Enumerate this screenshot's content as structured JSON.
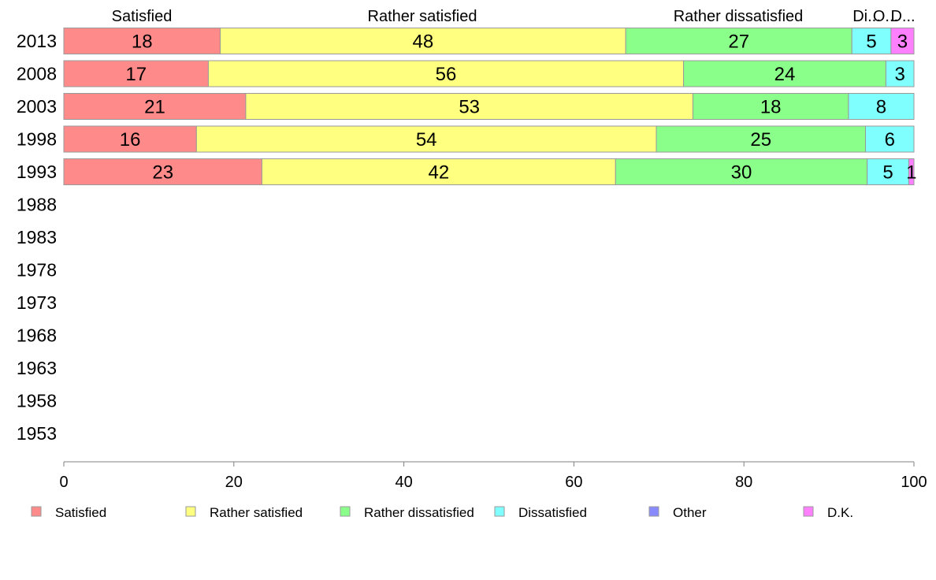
{
  "chart_data": {
    "type": "bar",
    "orientation": "horizontal",
    "stacked": true,
    "categories": [
      "2013",
      "2008",
      "2003",
      "1998",
      "1993",
      "1988",
      "1983",
      "1978",
      "1973",
      "1968",
      "1963",
      "1958",
      "1953"
    ],
    "series": [
      {
        "name": "Satisfied",
        "color": "#ff8a8a",
        "values": [
          18.4,
          17,
          21.4,
          15.6,
          23.3,
          null,
          null,
          null,
          null,
          null,
          null,
          null,
          null
        ]
      },
      {
        "name": "Rather satisfied",
        "color": "#ffff80",
        "values": [
          47.7,
          55.9,
          52.6,
          54.1,
          41.6,
          null,
          null,
          null,
          null,
          null,
          null,
          null,
          null
        ]
      },
      {
        "name": "Rather dissatisfied",
        "color": "#8aff8a",
        "values": [
          26.6,
          23.8,
          18.3,
          24.6,
          29.6,
          null,
          null,
          null,
          null,
          null,
          null,
          null,
          null
        ]
      },
      {
        "name": "Dissatisfied",
        "color": "#80ffff",
        "values": [
          4.6,
          3.3,
          7.7,
          5.7,
          4.9,
          null,
          null,
          null,
          null,
          null,
          null,
          null,
          null
        ]
      },
      {
        "name": "Other",
        "color": "#8a8aff",
        "values": [
          0,
          0,
          0,
          0,
          0,
          null,
          null,
          null,
          null,
          null,
          null,
          null,
          null
        ]
      },
      {
        "name": "D.K.",
        "color": "#ff80ff",
        "values": [
          2.7,
          0,
          0,
          0,
          0.6,
          null,
          null,
          null,
          null,
          null,
          null,
          null,
          null
        ]
      }
    ],
    "data_labels": [
      [
        "18",
        "48",
        "27",
        "5",
        "",
        "3"
      ],
      [
        "17",
        "56",
        "24",
        "3",
        "",
        ""
      ],
      [
        "21",
        "53",
        "18",
        "8",
        "",
        ""
      ],
      [
        "16",
        "54",
        "25",
        "6",
        "",
        ""
      ],
      [
        "23",
        "42",
        "30",
        "5",
        "",
        "1"
      ]
    ],
    "top_labels": [
      "Satisfied",
      "Rather satisfied",
      "Rather dissatisfied",
      "Di...",
      "O...",
      "D..."
    ],
    "xlim": [
      0,
      100
    ],
    "xticks": [
      0,
      20,
      40,
      60,
      80,
      100
    ],
    "grid": false,
    "legend_position": "bottom",
    "title": "",
    "xlabel": "",
    "ylabel": ""
  }
}
